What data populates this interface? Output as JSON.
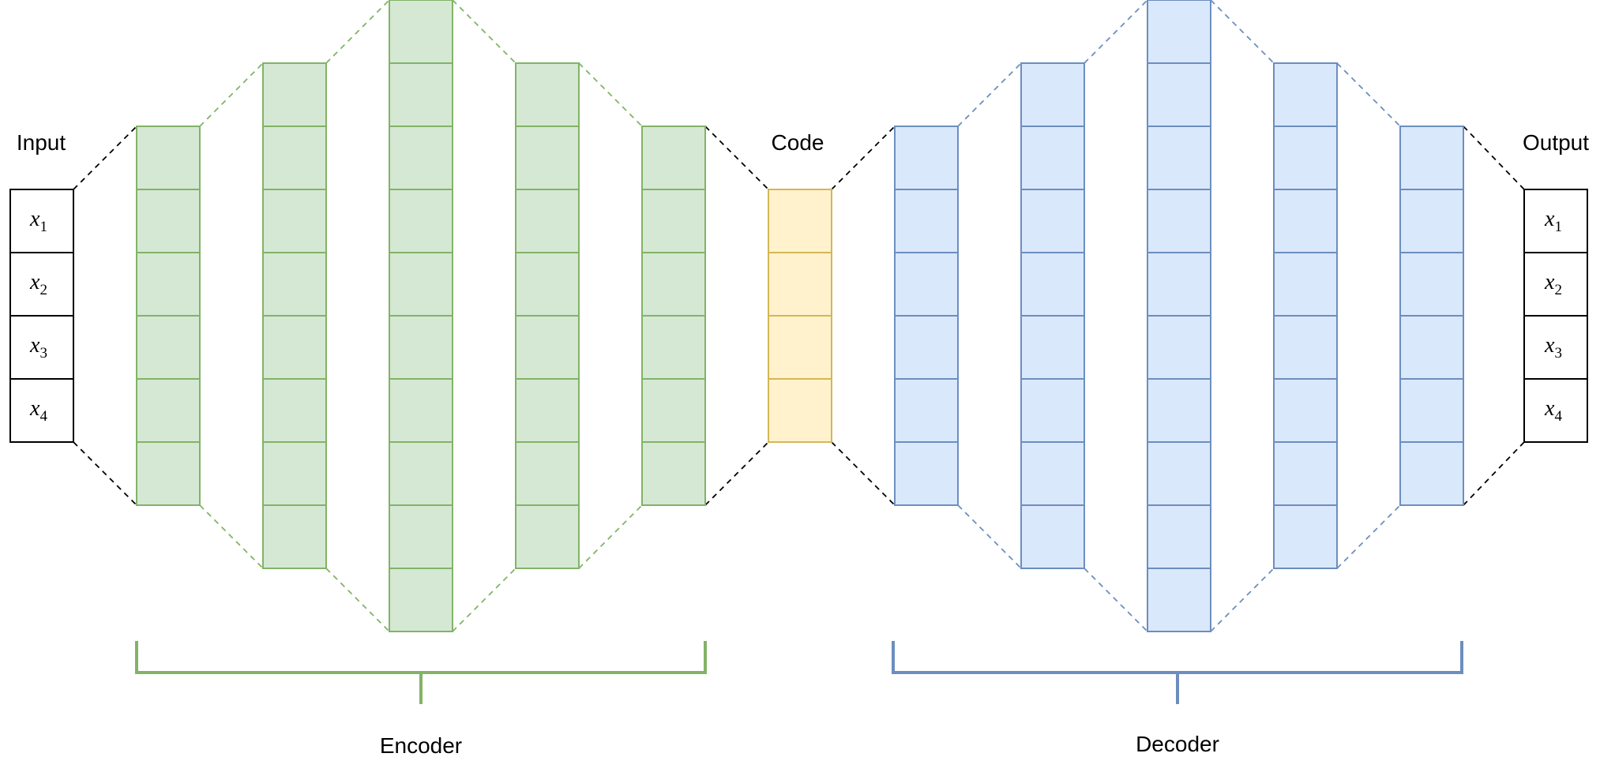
{
  "labels": {
    "input": "Input",
    "code": "Code",
    "output": "Output",
    "encoder": "Encoder",
    "decoder": "Decoder"
  },
  "input_vars": [
    {
      "base": "x",
      "sub": "1"
    },
    {
      "base": "x",
      "sub": "2"
    },
    {
      "base": "x",
      "sub": "3"
    },
    {
      "base": "x",
      "sub": "4"
    }
  ],
  "output_vars": [
    {
      "base": "x",
      "sub": "1"
    },
    {
      "base": "x",
      "sub": "2"
    },
    {
      "base": "x",
      "sub": "3"
    },
    {
      "base": "x",
      "sub": "4"
    }
  ],
  "layers": {
    "encoder_cells": [
      6,
      8,
      10,
      8,
      6
    ],
    "code_cells": 4,
    "decoder_cells": [
      6,
      8,
      10,
      8,
      6
    ]
  },
  "colors": {
    "encoder_fill": "#d5e8d4",
    "encoder_stroke": "#82b366",
    "code_fill": "#fff2cc",
    "code_stroke": "#d6b656",
    "decoder_fill": "#dae8fc",
    "decoder_stroke": "#6c8ebf",
    "io_stroke": "#000000"
  }
}
